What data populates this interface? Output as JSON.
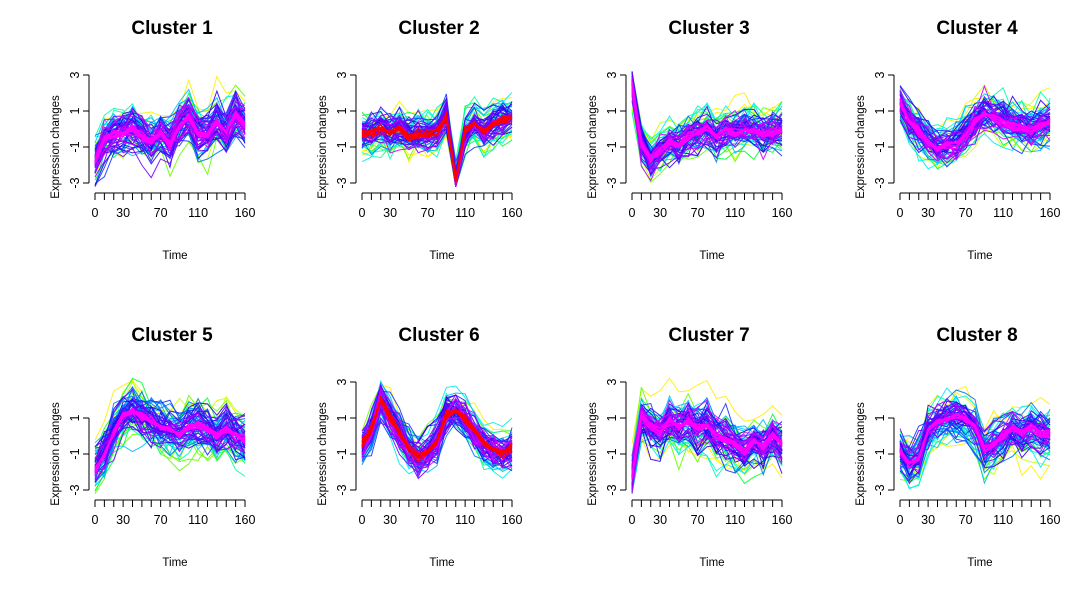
{
  "chart_data": [
    {
      "type": "line",
      "title": "Cluster 1",
      "xlabel": "Time",
      "ylabel": "Expression changes",
      "xlim": [
        0,
        160
      ],
      "ylim": [
        -3,
        3
      ],
      "x_ticks": [
        0,
        10,
        20,
        30,
        40,
        50,
        60,
        70,
        80,
        90,
        100,
        110,
        120,
        130,
        140,
        150,
        160
      ],
      "x_tick_labels": [
        "0",
        "30",
        "70",
        "110",
        "160"
      ],
      "y_tick_labels": [
        "-3",
        "-1",
        "1",
        "3"
      ],
      "x": [
        0,
        10,
        20,
        30,
        40,
        50,
        60,
        70,
        80,
        90,
        100,
        110,
        120,
        130,
        140,
        150,
        160
      ],
      "series": [
        {
          "name": "centroid",
          "values": [
            -1.8,
            -0.6,
            -0.3,
            -0.2,
            0.0,
            -0.4,
            -0.7,
            -0.2,
            -0.8,
            0.2,
            0.7,
            -0.2,
            -0.3,
            0.3,
            -0.2,
            0.8,
            0.2
          ]
        }
      ],
      "spread": 1.0,
      "member_color": "#1a33ff",
      "center_color": "#ff00ff"
    },
    {
      "type": "line",
      "title": "Cluster 2",
      "xlabel": "Time",
      "ylabel": "Expression changes",
      "xlim": [
        0,
        160
      ],
      "ylim": [
        -3,
        3
      ],
      "x_ticks": [
        0,
        10,
        20,
        30,
        40,
        50,
        60,
        70,
        80,
        90,
        100,
        110,
        120,
        130,
        140,
        150,
        160
      ],
      "x_tick_labels": [
        "0",
        "30",
        "70",
        "110",
        "160"
      ],
      "y_tick_labels": [
        "-3",
        "-1",
        "1",
        "3"
      ],
      "x": [
        0,
        10,
        20,
        30,
        40,
        50,
        60,
        70,
        80,
        90,
        100,
        110,
        120,
        130,
        140,
        150,
        160
      ],
      "series": [
        {
          "name": "centroid",
          "values": [
            -0.3,
            -0.2,
            0.0,
            -0.3,
            0.0,
            -0.4,
            -0.3,
            -0.3,
            -0.2,
            0.7,
            -2.9,
            -0.2,
            0.3,
            -0.2,
            0.3,
            0.5,
            0.6
          ]
        }
      ],
      "spread": 0.8,
      "member_color": "#ff8800",
      "center_color": "#ff0000"
    },
    {
      "type": "line",
      "title": "Cluster 3",
      "xlabel": "Time",
      "ylabel": "Expression changes",
      "xlim": [
        0,
        160
      ],
      "ylim": [
        -3,
        3
      ],
      "x_ticks": [
        0,
        10,
        20,
        30,
        40,
        50,
        60,
        70,
        80,
        90,
        100,
        110,
        120,
        130,
        140,
        150,
        160
      ],
      "x_tick_labels": [
        "0",
        "30",
        "70",
        "110",
        "160"
      ],
      "y_tick_labels": [
        "-3",
        "-1",
        "1",
        "3"
      ],
      "x": [
        0,
        10,
        20,
        30,
        40,
        50,
        60,
        70,
        80,
        90,
        100,
        110,
        120,
        130,
        140,
        150,
        160
      ],
      "series": [
        {
          "name": "centroid",
          "values": [
            2.5,
            -0.8,
            -1.7,
            -1.2,
            -0.8,
            -0.9,
            -0.4,
            -0.3,
            0.0,
            -0.4,
            -0.1,
            -0.2,
            0.0,
            -0.1,
            -0.3,
            -0.2,
            -0.1
          ]
        }
      ],
      "spread": 0.9,
      "member_color": "#1a33ff",
      "center_color": "#ff00ff"
    },
    {
      "type": "line",
      "title": "Cluster 4",
      "xlabel": "Time",
      "ylabel": "Expression changes",
      "xlim": [
        0,
        160
      ],
      "ylim": [
        -3,
        3
      ],
      "x_ticks": [
        0,
        10,
        20,
        30,
        40,
        50,
        60,
        70,
        80,
        90,
        100,
        110,
        120,
        130,
        140,
        150,
        160
      ],
      "x_tick_labels": [
        "0",
        "30",
        "70",
        "110",
        "160"
      ],
      "y_tick_labels": [
        "-3",
        "-1",
        "1",
        "3"
      ],
      "x": [
        0,
        10,
        20,
        30,
        40,
        50,
        60,
        70,
        80,
        90,
        100,
        110,
        120,
        130,
        140,
        150,
        160
      ],
      "series": [
        {
          "name": "centroid",
          "values": [
            1.4,
            0.4,
            -0.1,
            -0.7,
            -1.1,
            -0.9,
            -0.8,
            -0.3,
            0.4,
            0.8,
            0.6,
            0.4,
            0.2,
            0.1,
            -0.1,
            0.2,
            0.4
          ]
        }
      ],
      "spread": 0.9,
      "member_color": "#1a33ff",
      "center_color": "#ff00ff"
    },
    {
      "type": "line",
      "title": "Cluster 5",
      "xlabel": "Time",
      "ylabel": "Expression changes",
      "xlim": [
        0,
        160
      ],
      "ylim": [
        -3,
        3
      ],
      "x_ticks": [
        0,
        10,
        20,
        30,
        40,
        50,
        60,
        70,
        80,
        90,
        100,
        110,
        120,
        130,
        140,
        150,
        160
      ],
      "x_tick_labels": [
        "0",
        "30",
        "70",
        "110",
        "160"
      ],
      "y_tick_labels": [
        "-3",
        "-1",
        "1"
      ],
      "x": [
        0,
        10,
        20,
        30,
        40,
        50,
        60,
        70,
        80,
        90,
        100,
        110,
        120,
        130,
        140,
        150,
        160
      ],
      "series": [
        {
          "name": "centroid",
          "values": [
            -1.9,
            -1.1,
            0.2,
            1.1,
            1.4,
            1.1,
            0.8,
            0.5,
            0.3,
            0.1,
            0.5,
            0.6,
            0.3,
            0.0,
            0.4,
            0.0,
            -0.2
          ]
        }
      ],
      "spread": 1.0,
      "member_color": "#1a33ff",
      "center_color": "#ff00ff"
    },
    {
      "type": "line",
      "title": "Cluster 6",
      "xlabel": "Time",
      "ylabel": "Expression changes",
      "xlim": [
        0,
        160
      ],
      "ylim": [
        -3,
        3
      ],
      "x_ticks": [
        0,
        10,
        20,
        30,
        40,
        50,
        60,
        70,
        80,
        90,
        100,
        110,
        120,
        130,
        140,
        150,
        160
      ],
      "x_tick_labels": [
        "0",
        "30",
        "70",
        "110",
        "160"
      ],
      "y_tick_labels": [
        "-3",
        "-1",
        "1",
        "3"
      ],
      "x": [
        0,
        10,
        20,
        30,
        40,
        50,
        60,
        70,
        80,
        90,
        100,
        110,
        120,
        130,
        140,
        150,
        160
      ],
      "series": [
        {
          "name": "centroid",
          "values": [
            -0.5,
            0.4,
            2.0,
            1.1,
            0.2,
            -0.7,
            -1.2,
            -0.9,
            -0.3,
            1.2,
            1.4,
            0.9,
            0.2,
            -0.4,
            -0.8,
            -1.0,
            -0.7
          ]
        }
      ],
      "spread": 0.9,
      "member_color": "#1a33ff",
      "center_color": "#ff0000"
    },
    {
      "type": "line",
      "title": "Cluster 7",
      "xlabel": "Time",
      "ylabel": "Expression changes",
      "xlim": [
        0,
        160
      ],
      "ylim": [
        -3,
        3
      ],
      "x_ticks": [
        0,
        10,
        20,
        30,
        40,
        50,
        60,
        70,
        80,
        90,
        100,
        110,
        120,
        130,
        140,
        150,
        160
      ],
      "x_tick_labels": [
        "0",
        "30",
        "70",
        "110",
        "160"
      ],
      "y_tick_labels": [
        "-3",
        "-1",
        "1",
        "3"
      ],
      "x": [
        0,
        10,
        20,
        30,
        40,
        50,
        60,
        70,
        80,
        90,
        100,
        110,
        120,
        130,
        140,
        150,
        160
      ],
      "series": [
        {
          "name": "centroid",
          "values": [
            -2.2,
            1.1,
            0.6,
            0.3,
            0.9,
            0.5,
            0.8,
            0.4,
            0.6,
            0.0,
            -0.2,
            -0.5,
            -0.8,
            -0.3,
            -0.6,
            0.1,
            -0.5
          ]
        }
      ],
      "spread": 1.0,
      "member_color": "#1a33ff",
      "center_color": "#ff00ff"
    },
    {
      "type": "line",
      "title": "Cluster 8",
      "xlabel": "Time",
      "ylabel": "Expression changes",
      "xlim": [
        0,
        160
      ],
      "ylim": [
        -3,
        3
      ],
      "x_ticks": [
        0,
        10,
        20,
        30,
        40,
        50,
        60,
        70,
        80,
        90,
        100,
        110,
        120,
        130,
        140,
        150,
        160
      ],
      "x_tick_labels": [
        "0",
        "30",
        "70",
        "110",
        "160"
      ],
      "y_tick_labels": [
        "-3",
        "-1",
        "1"
      ],
      "x": [
        0,
        10,
        20,
        30,
        40,
        50,
        60,
        70,
        80,
        90,
        100,
        110,
        120,
        130,
        140,
        150,
        160
      ],
      "series": [
        {
          "name": "centroid",
          "values": [
            -0.8,
            -1.6,
            -1.2,
            0.3,
            0.8,
            1.0,
            1.1,
            0.9,
            0.5,
            -0.8,
            -0.4,
            0.0,
            0.4,
            0.2,
            0.5,
            0.1,
            0.1
          ]
        }
      ],
      "spread": 1.0,
      "member_color": "#1a33ff",
      "center_color": "#ff00ff"
    }
  ]
}
